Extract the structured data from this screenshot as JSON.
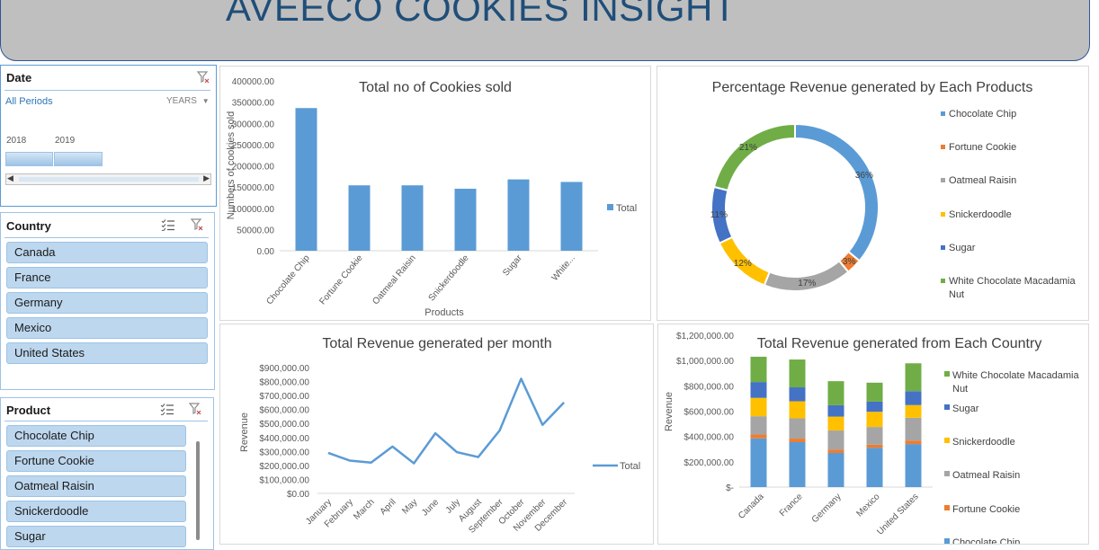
{
  "dashboard_title": "AVEECO COOKIES INSIGHT",
  "date_slicer": {
    "title": "Date",
    "period": "All Periods",
    "level": "YEARS",
    "years": [
      "2018",
      "2019"
    ]
  },
  "country_slicer": {
    "title": "Country",
    "items": [
      "Canada",
      "France",
      "Germany",
      "Mexico",
      "United States"
    ]
  },
  "product_slicer": {
    "title": "Product",
    "items": [
      "Chocolate Chip",
      "Fortune Cookie",
      "Oatmeal Raisin",
      "Snickerdoodle",
      "Sugar"
    ]
  },
  "colors": {
    "blue": "#5b9bd5",
    "orange": "#ed7d31",
    "gray": "#a5a5a5",
    "yellow": "#ffc000",
    "darkblue": "#4472c4",
    "green": "#70ad47"
  },
  "chart_data": [
    {
      "id": "cookies-sold",
      "type": "bar",
      "title": "Total no of Cookies sold",
      "xlabel": "Products",
      "ylabel": "Numbers of cookies sold",
      "categories": [
        "Chocolate Chip",
        "Fortune Cookie",
        "Oatmeal Raisin",
        "Snickerdoodle",
        "Sugar",
        "White..."
      ],
      "series": [
        {
          "name": "Total",
          "values": [
            336000,
            154000,
            154000,
            146000,
            168000,
            162000
          ]
        }
      ],
      "yticks": [
        "0.00",
        "50000.00",
        "100000.00",
        "150000.00",
        "200000.00",
        "250000.00",
        "300000.00",
        "350000.00",
        "400000.00"
      ],
      "ylim": [
        0,
        400000
      ],
      "legend": "right"
    },
    {
      "id": "revenue-share",
      "type": "pie",
      "title": "Percentage Revenue generated by Each Products",
      "categories": [
        "Chocolate Chip",
        "Fortune Cookie",
        "Oatmeal Raisin",
        "Snickerdoodle",
        "Sugar",
        "White Chocolate Macadamia Nut"
      ],
      "values": [
        36,
        3,
        17,
        12,
        11,
        21
      ],
      "labels": [
        "36%",
        "3%",
        "17%",
        "12%",
        "11%",
        "21%"
      ],
      "legend": "right"
    },
    {
      "id": "revenue-month",
      "type": "line",
      "title": "Total Revenue generated per month",
      "ylabel": "Revenue",
      "categories": [
        "January",
        "February",
        "March",
        "April",
        "May",
        "June",
        "July",
        "August",
        "September",
        "October",
        "November",
        "December"
      ],
      "series": [
        {
          "name": "Total",
          "values": [
            290000,
            235000,
            220000,
            335000,
            215000,
            430000,
            295000,
            260000,
            450000,
            820000,
            490000,
            650000
          ]
        }
      ],
      "yticks": [
        "$0.00",
        "$100,000.00",
        "$200,000.00",
        "$300,000.00",
        "$400,000.00",
        "$500,000.00",
        "$600,000.00",
        "$700,000.00",
        "$800,000.00",
        "$900,000.00"
      ],
      "ylim": [
        0,
        900000
      ],
      "legend": "right"
    },
    {
      "id": "revenue-country",
      "type": "bar",
      "stacked": true,
      "title": "Total Revenue generated from Each Country",
      "ylabel": "Revenue",
      "categories": [
        "Canada",
        "France",
        "Germany",
        "Mexico",
        "United States"
      ],
      "series": [
        {
          "name": "Chocolate Chip",
          "values": [
            385000,
            355000,
            270000,
            310000,
            340000
          ]
        },
        {
          "name": "Fortune Cookie",
          "values": [
            30000,
            28000,
            27000,
            25000,
            28000
          ]
        },
        {
          "name": "Oatmeal Raisin",
          "values": [
            145000,
            160000,
            150000,
            140000,
            180000
          ]
        },
        {
          "name": "Snickerdoodle",
          "values": [
            145000,
            135000,
            110000,
            120000,
            100000
          ]
        },
        {
          "name": "Sugar",
          "values": [
            125000,
            110000,
            90000,
            80000,
            110000
          ]
        },
        {
          "name": "White Chocolate Macadamia Nut",
          "values": [
            200000,
            220000,
            190000,
            150000,
            220000
          ]
        }
      ],
      "yticks": [
        "$-",
        "$200,000.00",
        "$400,000.00",
        "$600,000.00",
        "$800,000.00",
        "$1,000,000.00",
        "$1,200,000.00"
      ],
      "ylim": [
        0,
        1200000
      ],
      "legend": "right"
    }
  ]
}
